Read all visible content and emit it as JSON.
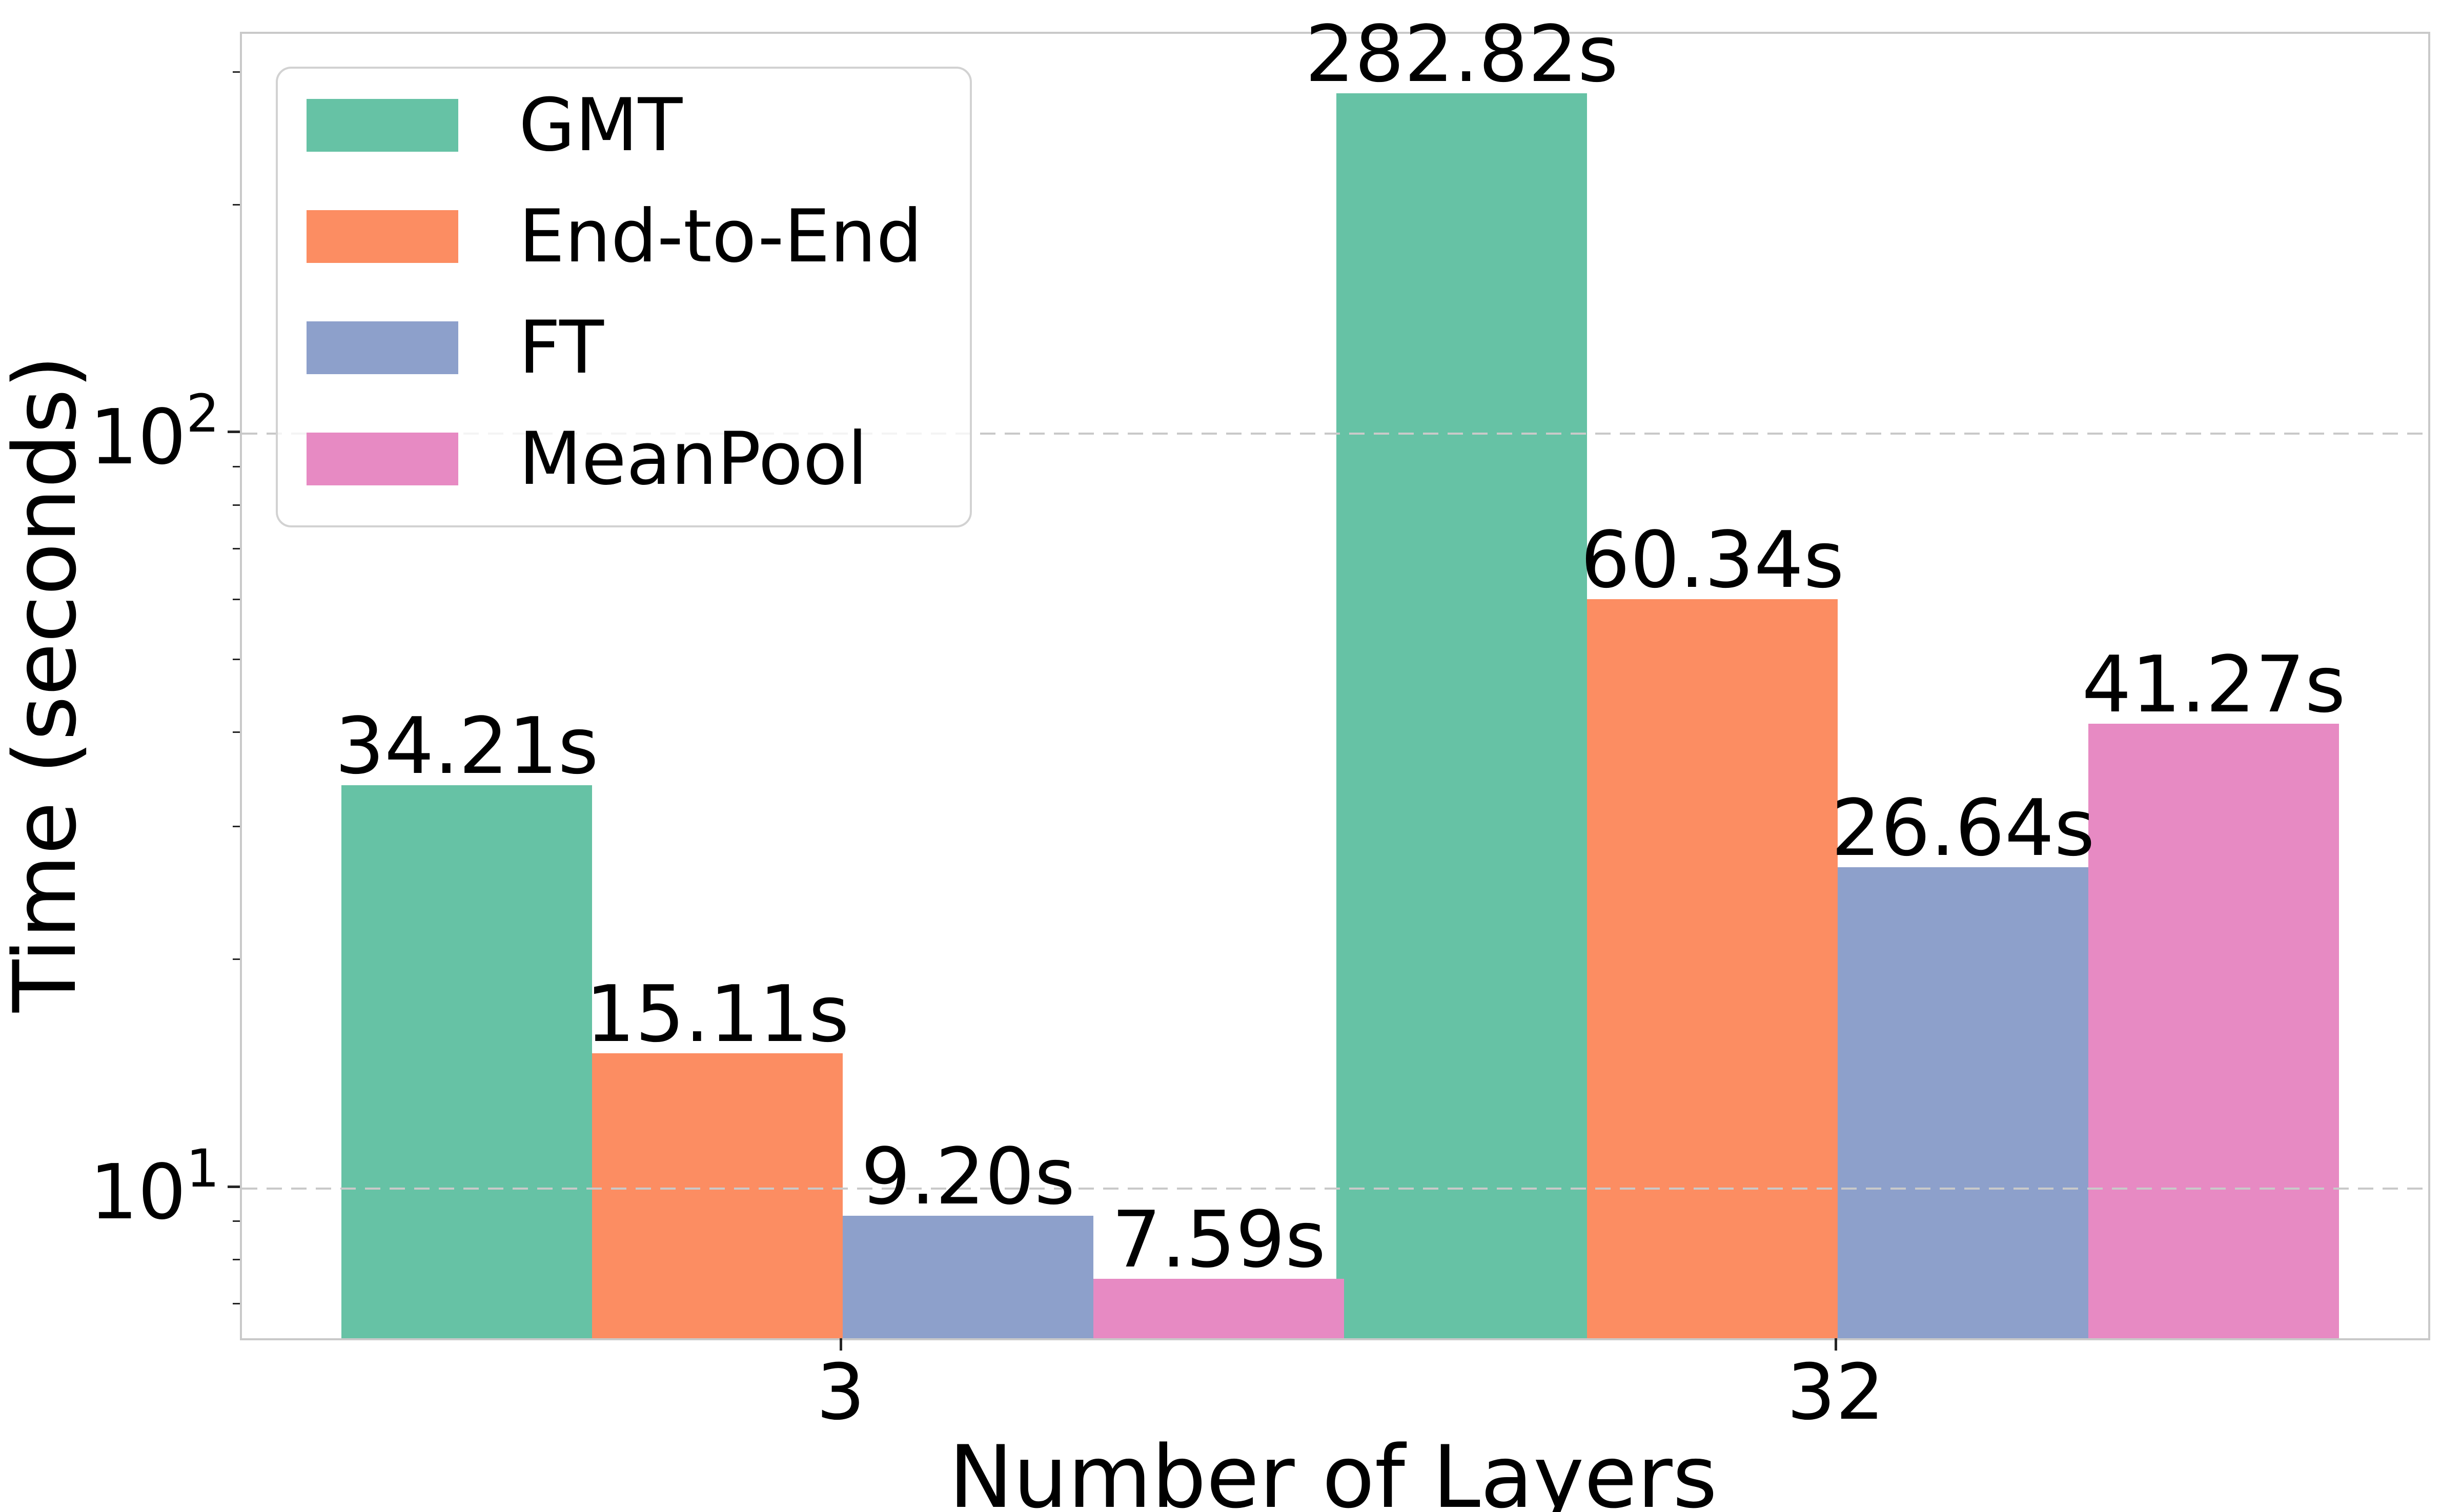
{
  "figure": {
    "xlabel": "Number of Layers",
    "ylabel": "Time (seconds)"
  },
  "yaxis": {
    "scale": "log",
    "ticks": [
      {
        "base": "10",
        "exp": "2",
        "value": 100
      },
      {
        "base": "10",
        "exp": "1",
        "value": 10
      }
    ],
    "minor_tick_values": [
      7,
      8,
      9,
      20,
      30,
      40,
      50,
      60,
      70,
      80,
      90,
      200,
      300
    ],
    "ylim": [
      6.33,
      338.9
    ]
  },
  "xaxis": {
    "tick_labels": [
      "3",
      "32"
    ]
  },
  "chart_data": {
    "type": "bar",
    "title": "",
    "xlabel": "Number of Layers",
    "ylabel": "Time (seconds)",
    "categories": [
      "3",
      "32"
    ],
    "series": [
      {
        "name": "GMT",
        "color": "#66c2a5",
        "values": [
          34.21,
          282.82
        ],
        "labels": [
          "34.21s",
          "282.82s"
        ]
      },
      {
        "name": "End-to-End",
        "color": "#fc8d62",
        "values": [
          15.11,
          60.34
        ],
        "labels": [
          "15.11s",
          "60.34s"
        ]
      },
      {
        "name": "FT",
        "color": "#8da0cb",
        "values": [
          9.2,
          26.64
        ],
        "labels": [
          "9.20s",
          "26.64s"
        ]
      },
      {
        "name": "MeanPool",
        "color": "#e78ac3",
        "values": [
          7.59,
          41.27
        ],
        "labels": [
          "7.59s",
          "41.27s"
        ]
      }
    ],
    "yscale": "log",
    "ylim": [
      6.33,
      338.9
    ],
    "grid": "horizontal dashed gridlines at powers of 10, drawn above bars",
    "grid_color": "#c9c9c9",
    "spine_color": "#c9c9c9",
    "legend_position": "upper left"
  }
}
